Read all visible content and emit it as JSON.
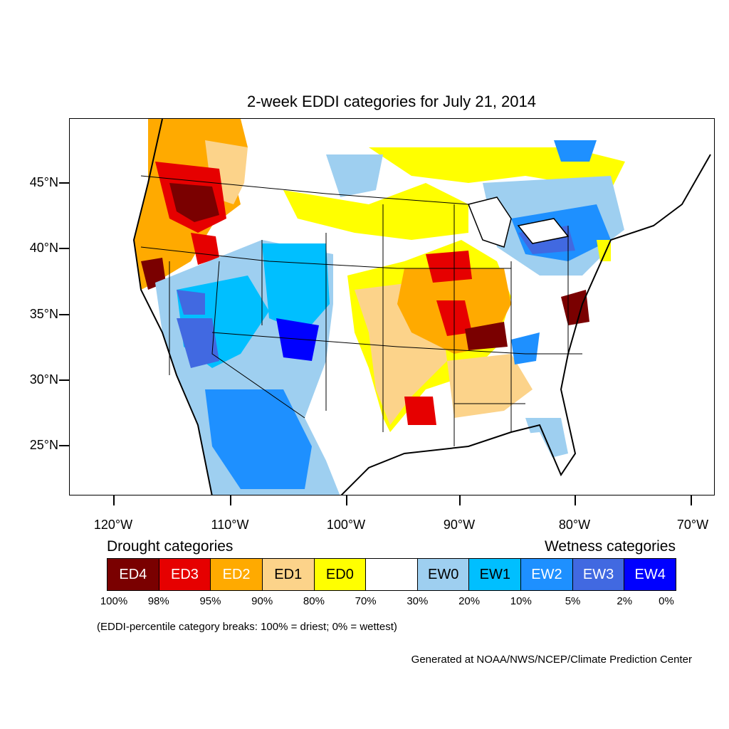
{
  "title": "2-week EDDI categories for July 21, 2014",
  "axes": {
    "latitude_labels": [
      "45°N",
      "40°N",
      "35°N",
      "30°N",
      "25°N"
    ],
    "longitude_labels": [
      "120°W",
      "110°W",
      "100°W",
      "90°W",
      "80°W",
      "70°W"
    ]
  },
  "legend": {
    "drought_heading": "Drought categories",
    "wetness_heading": "Wetness categories",
    "categories": [
      {
        "label": "ED4",
        "color": "#7a0000",
        "text_color": "#ffffff"
      },
      {
        "label": "ED3",
        "color": "#e60000",
        "text_color": "#ffffff"
      },
      {
        "label": "ED2",
        "color": "#ffaa00",
        "text_color": "#ffffff"
      },
      {
        "label": "ED1",
        "color": "#fcd38a",
        "text_color": "#000000"
      },
      {
        "label": "ED0",
        "color": "#ffff00",
        "text_color": "#000000"
      },
      {
        "label": "",
        "color": "#ffffff",
        "text_color": "#000000"
      },
      {
        "label": "EW0",
        "color": "#9ecff0",
        "text_color": "#000000"
      },
      {
        "label": "EW1",
        "color": "#00bfff",
        "text_color": "#000000"
      },
      {
        "label": "EW2",
        "color": "#1e90ff",
        "text_color": "#ffffff"
      },
      {
        "label": "EW3",
        "color": "#4169e1",
        "text_color": "#ffffff"
      },
      {
        "label": "EW4",
        "color": "#0000ff",
        "text_color": "#ffffff"
      }
    ],
    "percentiles": [
      "100%",
      "98%",
      "95%",
      "90%",
      "80%",
      "70%",
      "30%",
      "20%",
      "10%",
      "5%",
      "2%",
      "0%"
    ]
  },
  "note": "(EDDI-percentile category breaks: 100% = driest; 0% = wettest)",
  "credit": "Generated at NOAA/NWS/NCEP/Climate Prediction Center"
}
